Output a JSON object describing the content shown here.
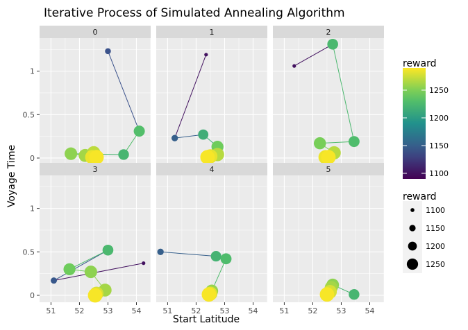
{
  "chart_data": {
    "type": "scatter",
    "title": "Iterative Process of Simulated Annealing Algorithm",
    "xlabel": "Start Latitude",
    "ylabel": "Voyage Time",
    "xlim": [
      50.6,
      54.5
    ],
    "ylim": [
      -0.08,
      1.38
    ],
    "xticks": [
      51,
      52,
      53,
      54
    ],
    "yticks": [
      0,
      0.5,
      1
    ],
    "ytick_labels": [
      "0",
      "0.5",
      "1"
    ],
    "grid": true,
    "facets": [
      {
        "label": "0",
        "points": [
          {
            "x": 53.0,
            "y": 1.23,
            "reward": 1140
          },
          {
            "x": 54.1,
            "y": 0.31,
            "reward": 1230
          },
          {
            "x": 53.55,
            "y": 0.04,
            "reward": 1222
          },
          {
            "x": 51.7,
            "y": 0.05,
            "reward": 1255
          },
          {
            "x": 52.2,
            "y": 0.03,
            "reward": 1262
          },
          {
            "x": 52.5,
            "y": 0.06,
            "reward": 1270
          },
          {
            "x": 52.45,
            "y": 0.01,
            "reward": 1285
          },
          {
            "x": 52.6,
            "y": 0.01,
            "reward": 1288
          }
        ]
      },
      {
        "label": "1",
        "points": [
          {
            "x": 52.35,
            "y": 1.19,
            "reward": 1100
          },
          {
            "x": 51.25,
            "y": 0.23,
            "reward": 1150
          },
          {
            "x": 52.25,
            "y": 0.27,
            "reward": 1215
          },
          {
            "x": 52.75,
            "y": 0.13,
            "reward": 1245
          },
          {
            "x": 52.75,
            "y": 0.04,
            "reward": 1268
          },
          {
            "x": 52.5,
            "y": 0.02,
            "reward": 1283
          },
          {
            "x": 52.4,
            "y": 0.01,
            "reward": 1288
          }
        ]
      },
      {
        "label": "2",
        "points": [
          {
            "x": 51.35,
            "y": 1.06,
            "reward": 1100
          },
          {
            "x": 52.7,
            "y": 1.31,
            "reward": 1225
          },
          {
            "x": 53.45,
            "y": 0.19,
            "reward": 1228
          },
          {
            "x": 52.25,
            "y": 0.17,
            "reward": 1248
          },
          {
            "x": 52.75,
            "y": 0.06,
            "reward": 1268
          },
          {
            "x": 52.45,
            "y": 0.01,
            "reward": 1285
          },
          {
            "x": 52.55,
            "y": 0.01,
            "reward": 1288
          }
        ]
      },
      {
        "label": "3",
        "points": [
          {
            "x": 54.25,
            "y": 0.37,
            "reward": 1100
          },
          {
            "x": 51.1,
            "y": 0.17,
            "reward": 1145
          },
          {
            "x": 53.0,
            "y": 0.52,
            "reward": 1225
          },
          {
            "x": 51.65,
            "y": 0.3,
            "reward": 1245
          },
          {
            "x": 52.4,
            "y": 0.27,
            "reward": 1255
          },
          {
            "x": 52.9,
            "y": 0.06,
            "reward": 1262
          },
          {
            "x": 52.6,
            "y": 0.02,
            "reward": 1278
          },
          {
            "x": 52.55,
            "y": 0.0,
            "reward": 1288
          }
        ]
      },
      {
        "label": "4",
        "points": [
          {
            "x": 50.75,
            "y": 0.5,
            "reward": 1150
          },
          {
            "x": 52.7,
            "y": 0.45,
            "reward": 1220
          },
          {
            "x": 53.05,
            "y": 0.42,
            "reward": 1228
          },
          {
            "x": 52.55,
            "y": 0.05,
            "reward": 1258
          },
          {
            "x": 52.5,
            "y": 0.02,
            "reward": 1280
          },
          {
            "x": 52.45,
            "y": 0.01,
            "reward": 1288
          }
        ]
      },
      {
        "label": "5",
        "points": [
          {
            "x": 53.45,
            "y": 0.01,
            "reward": 1222
          },
          {
            "x": 52.7,
            "y": 0.12,
            "reward": 1255
          },
          {
            "x": 52.65,
            "y": 0.09,
            "reward": 1262
          },
          {
            "x": 52.6,
            "y": 0.04,
            "reward": 1278
          },
          {
            "x": 52.5,
            "y": 0.01,
            "reward": 1288
          }
        ]
      }
    ],
    "legend": {
      "color": {
        "title": "reward",
        "range": [
          1090,
          1290
        ],
        "ticks": [
          1100,
          1150,
          1200,
          1250
        ],
        "colormap": "viridis"
      },
      "size": {
        "title": "reward",
        "items": [
          1100,
          1150,
          1200,
          1250
        ]
      },
      "placement": "right"
    },
    "colors": {
      "panel_bg": "#ebebeb",
      "grid": "#ffffff",
      "strip_bg": "#d9d9d9"
    }
  }
}
